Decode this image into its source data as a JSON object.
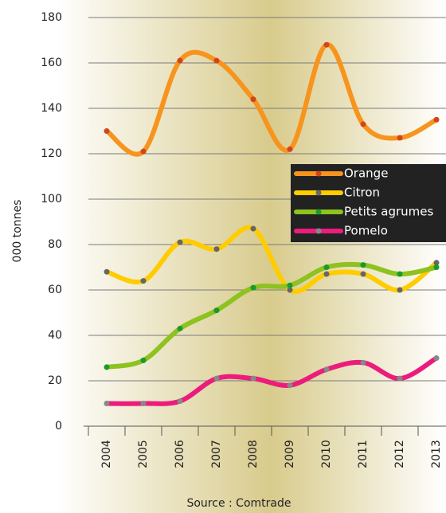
{
  "chart_data": {
    "type": "line",
    "y_label": "000 tonnes",
    "source": "Source : Comtrade",
    "categories": [
      "2004",
      "2005",
      "2006",
      "2007",
      "2008",
      "2009",
      "2010",
      "2011",
      "2012",
      "2013"
    ],
    "series": [
      {
        "name": "Orange",
        "color": "#f7941d",
        "marker_color": "#d0451b",
        "values": [
          130,
          121,
          161,
          161,
          144,
          122,
          168,
          133,
          127,
          135
        ]
      },
      {
        "name": "Citron",
        "color": "#ffcc00",
        "marker_color": "#666666",
        "values": [
          68,
          64,
          81,
          78,
          87,
          60,
          67,
          67,
          60,
          72
        ]
      },
      {
        "name": "Petits agrumes",
        "color": "#8dc21f",
        "marker_color": "#1a9a2a",
        "values": [
          26,
          29,
          43,
          51,
          61,
          62,
          70,
          71,
          67,
          70
        ]
      },
      {
        "name": "Pomelo",
        "color": "#ec1c7c",
        "marker_color": "#888888",
        "values": [
          10,
          10,
          11,
          21,
          21,
          18,
          25,
          28,
          21,
          30
        ]
      }
    ],
    "ylim": [
      0,
      180
    ],
    "yticks": [
      0,
      20,
      40,
      60,
      80,
      100,
      120,
      140,
      160,
      180
    ],
    "grid": true
  }
}
